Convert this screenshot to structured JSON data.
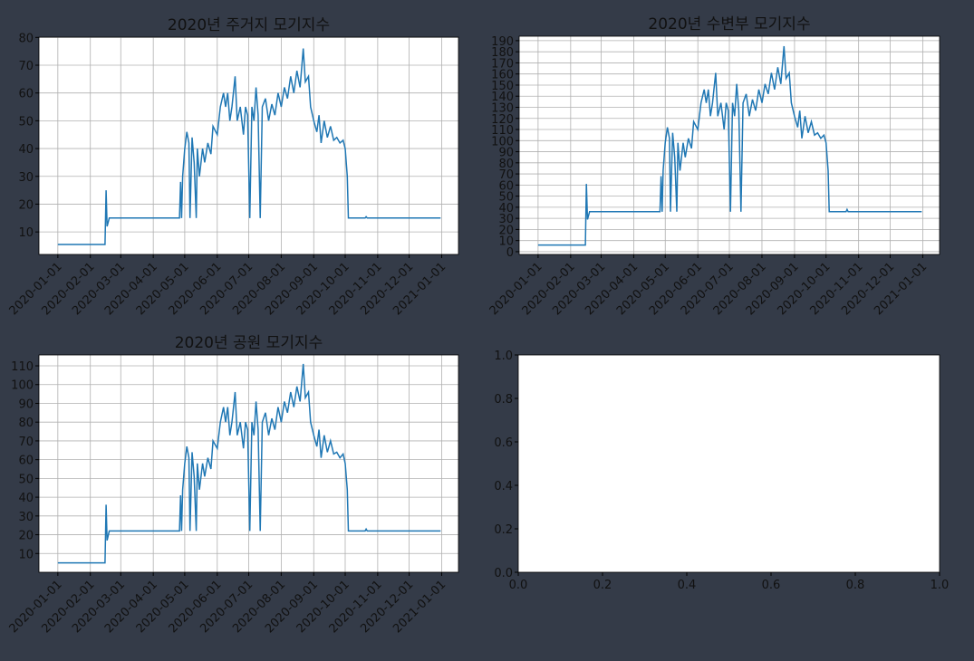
{
  "chart_data": [
    {
      "type": "line",
      "title": "2020년 주거지 모기지수",
      "x": [
        "2020-01-01",
        "2020-02-15",
        "2020-02-16",
        "2020-02-17",
        "2020-02-19",
        "2020-03-01",
        "2020-04-26",
        "2020-04-27",
        "2020-04-28",
        "2020-04-29",
        "2020-05-01",
        "2020-05-03",
        "2020-05-05",
        "2020-05-06",
        "2020-05-08",
        "2020-05-10",
        "2020-05-12",
        "2020-05-13",
        "2020-05-15",
        "2020-05-18",
        "2020-05-20",
        "2020-05-23",
        "2020-05-26",
        "2020-05-28",
        "2020-06-01",
        "2020-06-04",
        "2020-06-07",
        "2020-06-09",
        "2020-06-11",
        "2020-06-13",
        "2020-06-15",
        "2020-06-18",
        "2020-06-20",
        "2020-06-23",
        "2020-06-26",
        "2020-06-28",
        "2020-06-30",
        "2020-07-02",
        "2020-07-04",
        "2020-07-06",
        "2020-07-08",
        "2020-07-10",
        "2020-07-12",
        "2020-07-14",
        "2020-07-17",
        "2020-07-20",
        "2020-07-23",
        "2020-07-26",
        "2020-07-29",
        "2020-08-01",
        "2020-08-04",
        "2020-08-07",
        "2020-08-10",
        "2020-08-13",
        "2020-08-16",
        "2020-08-19",
        "2020-08-22",
        "2020-08-24",
        "2020-08-27",
        "2020-08-29",
        "2020-09-01",
        "2020-09-04",
        "2020-09-06",
        "2020-09-08",
        "2020-09-11",
        "2020-09-14",
        "2020-09-17",
        "2020-09-20",
        "2020-09-23",
        "2020-09-26",
        "2020-09-29",
        "2020-10-01",
        "2020-10-03",
        "2020-10-04",
        "2020-10-20",
        "2020-10-21",
        "2020-10-22",
        "2020-12-31"
      ],
      "series": [
        {
          "color": "#1f77b4",
          "values": [
            5.5,
            5.5,
            25,
            12,
            15,
            15,
            15,
            28,
            15,
            30,
            40,
            46,
            42,
            15,
            44,
            35,
            15,
            40,
            30,
            40,
            35,
            42,
            38,
            48,
            45,
            55,
            60,
            55,
            60,
            50,
            55,
            66,
            50,
            55,
            45,
            55,
            52,
            15,
            55,
            50,
            62,
            52,
            15,
            55,
            58,
            50,
            56,
            52,
            60,
            55,
            62,
            58,
            66,
            60,
            68,
            62,
            76,
            64,
            66,
            55,
            50,
            46,
            52,
            42,
            50,
            44,
            48,
            43,
            44,
            42,
            43,
            40,
            30,
            15,
            15,
            15.5,
            15,
            15
          ]
        }
      ],
      "xlim": [
        "2019-12-14",
        "2021-01-17"
      ],
      "xticks": [
        "2020-01-01",
        "2020-02-01",
        "2020-03-01",
        "2020-04-01",
        "2020-05-01",
        "2020-06-01",
        "2020-07-01",
        "2020-08-01",
        "2020-09-01",
        "2020-10-01",
        "2020-11-01",
        "2020-12-01",
        "2021-01-01"
      ],
      "ylim": [
        1.9,
        80.1
      ],
      "yticks": [
        10,
        20,
        30,
        40,
        50,
        60,
        70,
        80
      ],
      "grid": true
    },
    {
      "type": "line",
      "title": "2020년 수변부 모기지수",
      "x": [
        "2020-01-01",
        "2020-02-15",
        "2020-02-16",
        "2020-02-17",
        "2020-02-19",
        "2020-03-01",
        "2020-04-26",
        "2020-04-27",
        "2020-04-28",
        "2020-04-29",
        "2020-05-01",
        "2020-05-03",
        "2020-05-05",
        "2020-05-06",
        "2020-05-08",
        "2020-05-10",
        "2020-05-12",
        "2020-05-13",
        "2020-05-15",
        "2020-05-18",
        "2020-05-20",
        "2020-05-23",
        "2020-05-26",
        "2020-05-28",
        "2020-06-01",
        "2020-06-04",
        "2020-06-07",
        "2020-06-09",
        "2020-06-11",
        "2020-06-13",
        "2020-06-15",
        "2020-06-18",
        "2020-06-20",
        "2020-06-23",
        "2020-06-26",
        "2020-06-28",
        "2020-06-30",
        "2020-07-02",
        "2020-07-04",
        "2020-07-06",
        "2020-07-08",
        "2020-07-10",
        "2020-07-12",
        "2020-07-14",
        "2020-07-17",
        "2020-07-20",
        "2020-07-23",
        "2020-07-26",
        "2020-07-29",
        "2020-08-01",
        "2020-08-04",
        "2020-08-07",
        "2020-08-10",
        "2020-08-13",
        "2020-08-16",
        "2020-08-19",
        "2020-08-22",
        "2020-08-24",
        "2020-08-27",
        "2020-08-29",
        "2020-09-01",
        "2020-09-04",
        "2020-09-06",
        "2020-09-08",
        "2020-09-11",
        "2020-09-14",
        "2020-09-17",
        "2020-09-20",
        "2020-09-23",
        "2020-09-26",
        "2020-09-29",
        "2020-10-01",
        "2020-10-03",
        "2020-10-04",
        "2020-10-20",
        "2020-10-21",
        "2020-10-22",
        "2020-12-31"
      ],
      "series": [
        {
          "color": "#1f77b4",
          "values": [
            6,
            6,
            61,
            29,
            36,
            36,
            36,
            68,
            36,
            73,
            98,
            112,
            102,
            36,
            107,
            85,
            36,
            98,
            73,
            98,
            85,
            102,
            93,
            117,
            110,
            134,
            146,
            134,
            146,
            122,
            134,
            161,
            122,
            134,
            110,
            134,
            127,
            36,
            134,
            122,
            151,
            127,
            36,
            134,
            142,
            122,
            137,
            127,
            146,
            134,
            151,
            142,
            161,
            146,
            166,
            151,
            185,
            156,
            161,
            134,
            122,
            112,
            127,
            102,
            122,
            107,
            117,
            105,
            107,
            102,
            105,
            98,
            73,
            36,
            36,
            38,
            36,
            36
          ]
        }
      ],
      "xlim": [
        "2019-12-14",
        "2021-01-17"
      ],
      "xticks": [
        "2020-01-01",
        "2020-02-01",
        "2020-03-01",
        "2020-04-01",
        "2020-05-01",
        "2020-06-01",
        "2020-07-01",
        "2020-08-01",
        "2020-09-01",
        "2020-10-01",
        "2020-11-01",
        "2020-12-01",
        "2021-01-01"
      ],
      "ylim": [
        -2.5,
        194
      ],
      "yticks": [
        0,
        10,
        20,
        30,
        40,
        50,
        60,
        70,
        80,
        90,
        100,
        110,
        120,
        130,
        140,
        150,
        160,
        170,
        180,
        190
      ],
      "grid": true
    },
    {
      "type": "line",
      "title": "2020년 공원 모기지수",
      "x": [
        "2020-01-01",
        "2020-02-15",
        "2020-02-16",
        "2020-02-17",
        "2020-02-19",
        "2020-03-01",
        "2020-04-26",
        "2020-04-27",
        "2020-04-28",
        "2020-04-29",
        "2020-05-01",
        "2020-05-03",
        "2020-05-05",
        "2020-05-06",
        "2020-05-08",
        "2020-05-10",
        "2020-05-12",
        "2020-05-13",
        "2020-05-15",
        "2020-05-18",
        "2020-05-20",
        "2020-05-23",
        "2020-05-26",
        "2020-05-28",
        "2020-06-01",
        "2020-06-04",
        "2020-06-07",
        "2020-06-09",
        "2020-06-11",
        "2020-06-13",
        "2020-06-15",
        "2020-06-18",
        "2020-06-20",
        "2020-06-23",
        "2020-06-26",
        "2020-06-28",
        "2020-06-30",
        "2020-07-02",
        "2020-07-04",
        "2020-07-06",
        "2020-07-08",
        "2020-07-10",
        "2020-07-12",
        "2020-07-14",
        "2020-07-17",
        "2020-07-20",
        "2020-07-23",
        "2020-07-26",
        "2020-07-29",
        "2020-08-01",
        "2020-08-04",
        "2020-08-07",
        "2020-08-10",
        "2020-08-13",
        "2020-08-16",
        "2020-08-19",
        "2020-08-22",
        "2020-08-24",
        "2020-08-27",
        "2020-08-29",
        "2020-09-01",
        "2020-09-04",
        "2020-09-06",
        "2020-09-08",
        "2020-09-11",
        "2020-09-14",
        "2020-09-17",
        "2020-09-20",
        "2020-09-23",
        "2020-09-26",
        "2020-09-29",
        "2020-10-01",
        "2020-10-03",
        "2020-10-04",
        "2020-10-20",
        "2020-10-21",
        "2020-10-22",
        "2020-12-31"
      ],
      "series": [
        {
          "color": "#1f77b4",
          "values": [
            5,
            5,
            36,
            17,
            22,
            22,
            22,
            41,
            22,
            44,
            58,
            67,
            61,
            22,
            64,
            51,
            22,
            58,
            44,
            58,
            51,
            61,
            55,
            70,
            66,
            80,
            88,
            80,
            88,
            73,
            80,
            96,
            73,
            80,
            66,
            80,
            76,
            22,
            80,
            73,
            91,
            76,
            22,
            80,
            85,
            73,
            82,
            76,
            88,
            80,
            91,
            85,
            96,
            88,
            99,
            91,
            111,
            93,
            96,
            80,
            73,
            67,
            76,
            61,
            73,
            64,
            70,
            63,
            64,
            61,
            63,
            58,
            44,
            22,
            22,
            23,
            22,
            22
          ]
        }
      ],
      "xlim": [
        "2019-12-14",
        "2021-01-17"
      ],
      "xticks": [
        "2020-01-01",
        "2020-02-01",
        "2020-03-01",
        "2020-04-01",
        "2020-05-01",
        "2020-06-01",
        "2020-07-01",
        "2020-08-01",
        "2020-09-01",
        "2020-10-01",
        "2020-11-01",
        "2020-12-01",
        "2021-01-01"
      ],
      "ylim": [
        0,
        115.8
      ],
      "yticks": [
        10,
        20,
        30,
        40,
        50,
        60,
        70,
        80,
        90,
        100,
        110
      ],
      "grid": true
    },
    {
      "type": "line",
      "xlim": [
        0,
        1
      ],
      "xticks": [
        {
          "value": 0,
          "label": "0.0"
        },
        {
          "value": 0.2,
          "label": "0.2"
        },
        {
          "value": 0.4,
          "label": "0.4"
        },
        {
          "value": 0.6,
          "label": "0.6"
        },
        {
          "value": 0.8,
          "label": "0.8"
        },
        {
          "value": 1,
          "label": "1.0"
        }
      ],
      "ylim": [
        0,
        1
      ],
      "yticks": [
        {
          "value": 0,
          "label": "0.0"
        },
        {
          "value": 0.2,
          "label": "0.2"
        },
        {
          "value": 0.4,
          "label": "0.4"
        },
        {
          "value": 0.6,
          "label": "0.6"
        },
        {
          "value": 0.8,
          "label": "0.8"
        },
        {
          "value": 1,
          "label": "1.0"
        }
      ],
      "grid": false
    }
  ]
}
